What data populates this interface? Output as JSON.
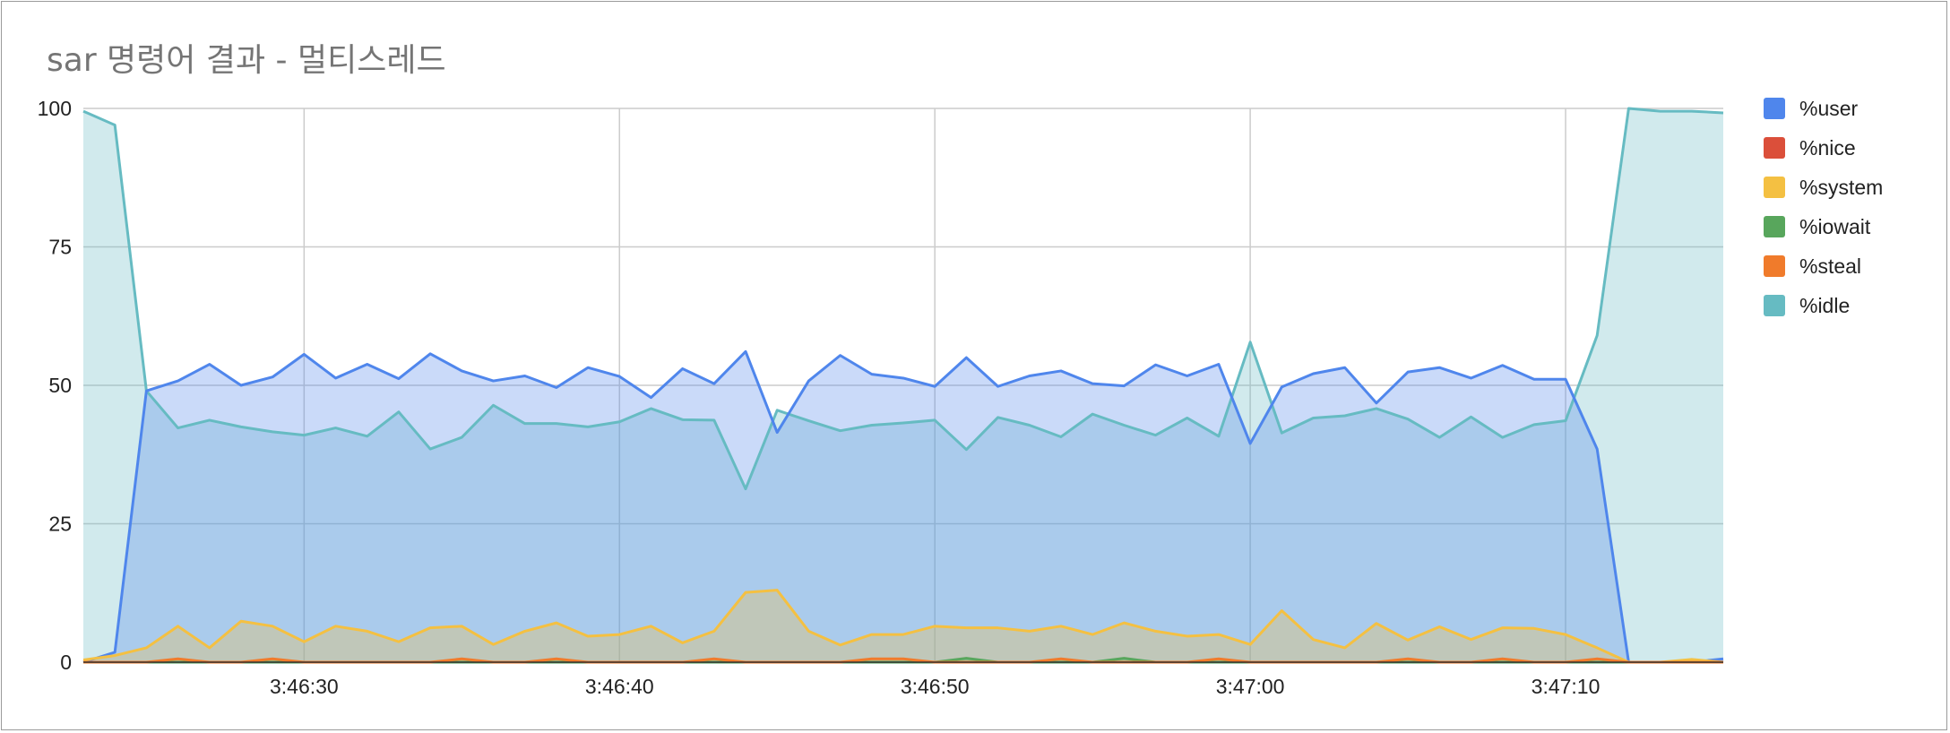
{
  "title": "sar 명령어 결과 - 멀티스레드",
  "chart_data": {
    "type": "area",
    "title": "sar 명령어 결과 - 멀티스레드",
    "xlabel": "",
    "ylabel": "",
    "ylim": [
      0,
      100
    ],
    "yticks": [
      "0",
      "25",
      "50",
      "75",
      "100"
    ],
    "xticks": [
      "3:46:30",
      "3:46:40",
      "3:46:50",
      "3:47:00",
      "3:47:10"
    ],
    "xtick_index": [
      7,
      17,
      27,
      37,
      47
    ],
    "grid": true,
    "legend": "right",
    "series": [
      {
        "name": "%user",
        "color": "#4f86ec",
        "values": [
          0,
          1.8,
          49,
          50.8,
          53.8,
          50,
          51.5,
          55.6,
          51.3,
          53.8,
          51.2,
          55.7,
          52.6,
          50.8,
          51.7,
          49.6,
          53.2,
          51.6,
          47.8,
          53,
          50.3,
          56.1,
          41.5,
          50.8,
          55.4,
          52,
          51.3,
          49.8,
          55,
          49.8,
          51.7,
          52.6,
          50.3,
          49.9,
          53.7,
          51.7,
          53.8,
          39.5,
          49.7,
          52.1,
          53.2,
          46.8,
          52.4,
          53.2,
          51.3,
          53.6,
          51.1,
          51.1,
          38.5,
          0,
          0,
          0,
          0.6
        ]
      },
      {
        "name": "%nice",
        "color": "#db4f3a",
        "values": [
          0,
          0,
          0,
          0,
          0,
          0,
          0,
          0,
          0,
          0,
          0,
          0,
          0,
          0,
          0,
          0,
          0,
          0,
          0,
          0,
          0,
          0,
          0,
          0,
          0,
          0,
          0,
          0,
          0,
          0,
          0,
          0,
          0,
          0,
          0,
          0,
          0,
          0,
          0,
          0,
          0,
          0,
          0,
          0,
          0,
          0,
          0,
          0,
          0,
          0,
          0,
          0,
          0
        ]
      },
      {
        "name": "%system",
        "color": "#f4c042",
        "values": [
          0.4,
          1.2,
          2.6,
          6.5,
          2.6,
          7.4,
          6.5,
          3.7,
          6.5,
          5.6,
          3.7,
          6.2,
          6.5,
          3.2,
          5.6,
          7.1,
          4.7,
          5,
          6.5,
          3.5,
          5.6,
          12.6,
          13,
          5.6,
          3.1,
          5,
          5,
          6.5,
          6.2,
          6.2,
          5.6,
          6.5,
          5,
          7.1,
          5.6,
          4.7,
          5,
          3.2,
          9.3,
          4.1,
          2.6,
          7,
          4,
          6.4,
          4.1,
          6.2,
          6.1,
          5,
          2.6,
          0,
          0,
          0.5,
          0
        ]
      },
      {
        "name": "%iowait",
        "color": "#58a65c",
        "values": [
          0,
          0,
          0,
          0,
          0,
          0,
          0,
          0,
          0,
          0,
          0,
          0,
          0,
          0,
          0,
          0,
          0,
          0,
          0,
          0,
          0,
          0,
          0,
          0,
          0,
          0,
          0,
          0,
          0.7,
          0,
          0,
          0,
          0,
          0.7,
          0,
          0,
          0,
          0,
          0,
          0,
          0,
          0,
          0,
          0,
          0,
          0,
          0,
          0,
          0,
          0,
          0,
          0,
          0
        ]
      },
      {
        "name": "%steal",
        "color": "#f07b2b",
        "values": [
          0,
          0,
          0,
          0.6,
          0,
          0,
          0.6,
          0,
          0,
          0,
          0,
          0,
          0.6,
          0,
          0,
          0.6,
          0,
          0,
          0,
          0,
          0.6,
          0,
          0,
          0,
          0,
          0.6,
          0.6,
          0,
          0,
          0,
          0,
          0.6,
          0,
          0,
          0,
          0,
          0.6,
          0,
          0,
          0,
          0,
          0,
          0.6,
          0,
          0,
          0.6,
          0,
          0,
          0.6,
          0,
          0,
          0,
          0
        ]
      },
      {
        "name": "%idle",
        "color": "#66bbc2",
        "values": [
          99.5,
          97,
          49,
          42.3,
          43.7,
          42.5,
          41.6,
          41,
          42.3,
          40.8,
          45.2,
          38.5,
          40.6,
          46.4,
          43.1,
          43.1,
          42.5,
          43.4,
          45.8,
          43.8,
          43.7,
          31.3,
          45.5,
          43.6,
          41.8,
          42.8,
          43.2,
          43.7,
          38.4,
          44.2,
          42.8,
          40.7,
          44.8,
          42.8,
          41,
          44.1,
          40.8,
          57.8,
          41.4,
          44.1,
          44.5,
          45.8,
          43.9,
          40.6,
          44.3,
          40.6,
          42.9,
          43.6,
          59,
          100,
          99.5,
          99.5,
          99.2
        ]
      }
    ]
  }
}
